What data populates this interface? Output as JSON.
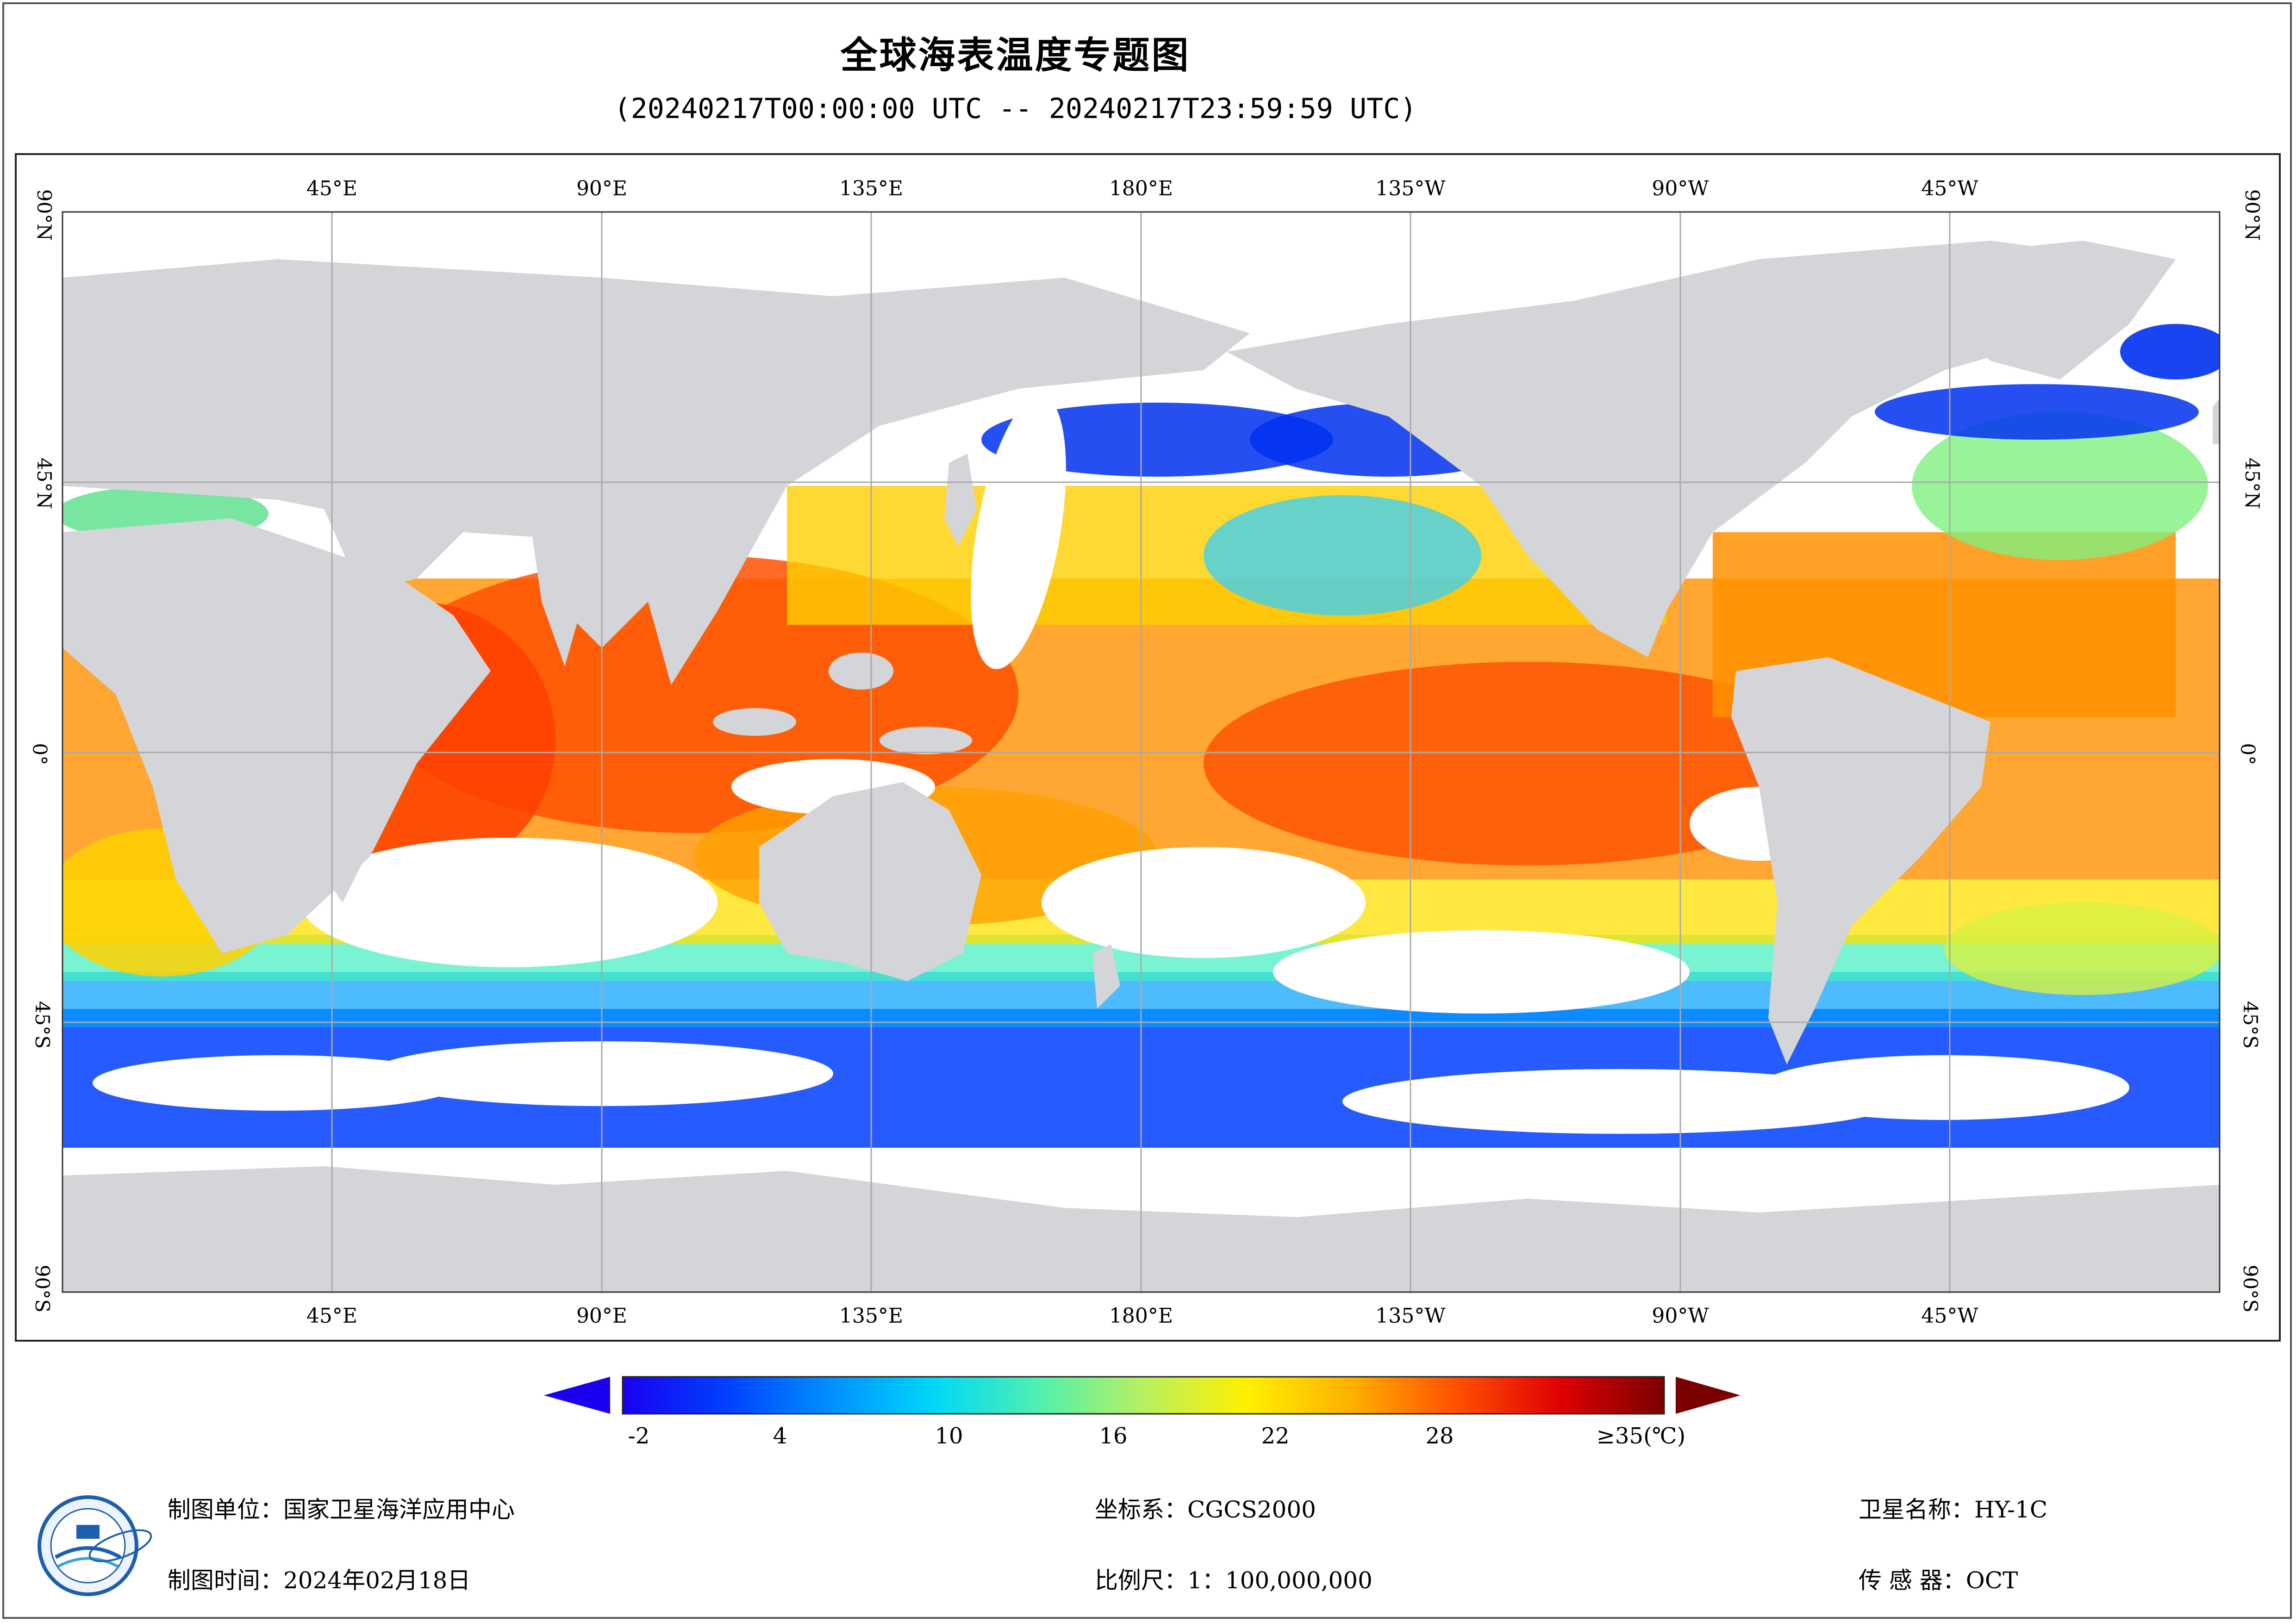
{
  "title": "全球海表温度专题图",
  "subtitle": "(20240217T00:00:00 UTC -- 20240217T23:59:59 UTC)",
  "map": {
    "top_ticks": [
      "45°E",
      "90°E",
      "135°E",
      "180°E",
      "135°W",
      "90°W",
      "45°W"
    ],
    "bottom_ticks": [
      "45°E",
      "90°E",
      "135°E",
      "180°E",
      "135°W",
      "90°W",
      "45°W"
    ],
    "lat_ticks": [
      "90°N",
      "45°N",
      "0°",
      "45°S",
      "90°S"
    ]
  },
  "legend": {
    "labels": [
      "-2",
      "4",
      "10",
      "16",
      "22",
      "28",
      "≥35(℃)"
    ],
    "colors": [
      "#1a00f0",
      "#0030ff",
      "#0070ff",
      "#00a8ff",
      "#00e0f0",
      "#40f0c0",
      "#90f080",
      "#d8f040",
      "#fff000",
      "#ffc000",
      "#ff8000",
      "#ff4000",
      "#e00000",
      "#8a0000"
    ]
  },
  "footer": {
    "org_label": "制图单位：",
    "org_value": "国家卫星海洋应用中心",
    "time_label": "制图时间：",
    "time_value": "2024年02月18日",
    "crs_label": "坐标系：",
    "crs_value": "CGCS2000",
    "scale_label": "比例尺：",
    "scale_value": "1：100,000,000",
    "sat_label": "卫星名称：",
    "sat_value": "HY-1C",
    "sensor_label": "传  感  器：",
    "sensor_value": "OCT"
  }
}
